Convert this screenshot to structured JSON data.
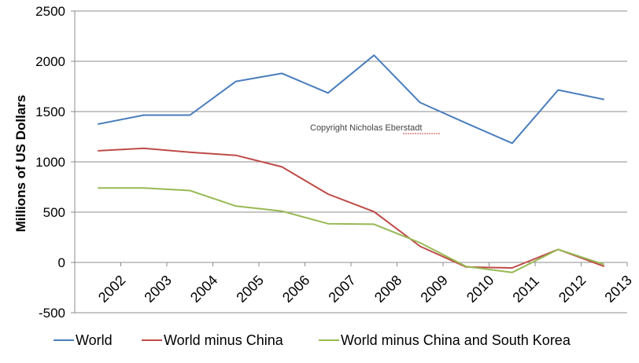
{
  "chart_data": {
    "type": "line",
    "categories": [
      "2002",
      "2003",
      "2004",
      "2005",
      "2006",
      "2007",
      "2008",
      "2009",
      "2010",
      "2011",
      "2012",
      "2013"
    ],
    "series": [
      {
        "name": "World",
        "color": "#4a7ebb",
        "values": [
          1375,
          1465,
          1465,
          1800,
          1880,
          1685,
          2060,
          1590,
          1385,
          1185,
          1715,
          1620
        ]
      },
      {
        "name": "World minus China",
        "color": "#be4b48",
        "values": [
          1110,
          1135,
          1095,
          1065,
          950,
          680,
          505,
          160,
          -45,
          -55,
          130,
          -40
        ]
      },
      {
        "name": "World minus China and South Korea",
        "color": "#98b954",
        "values": [
          740,
          740,
          715,
          560,
          510,
          385,
          380,
          195,
          -40,
          -100,
          130,
          -20
        ]
      }
    ],
    "yticks": [
      "-500",
      "0",
      "500",
      "1000",
      "1500",
      "2000",
      "2500"
    ],
    "ylim": [
      -500,
      2500
    ],
    "ylabel": "Millions  of US Dollars",
    "xlabel": "",
    "title": "",
    "annotation": "Copyright  Nicholas  Eberstadt",
    "grid": true,
    "legend_position": "bottom"
  }
}
